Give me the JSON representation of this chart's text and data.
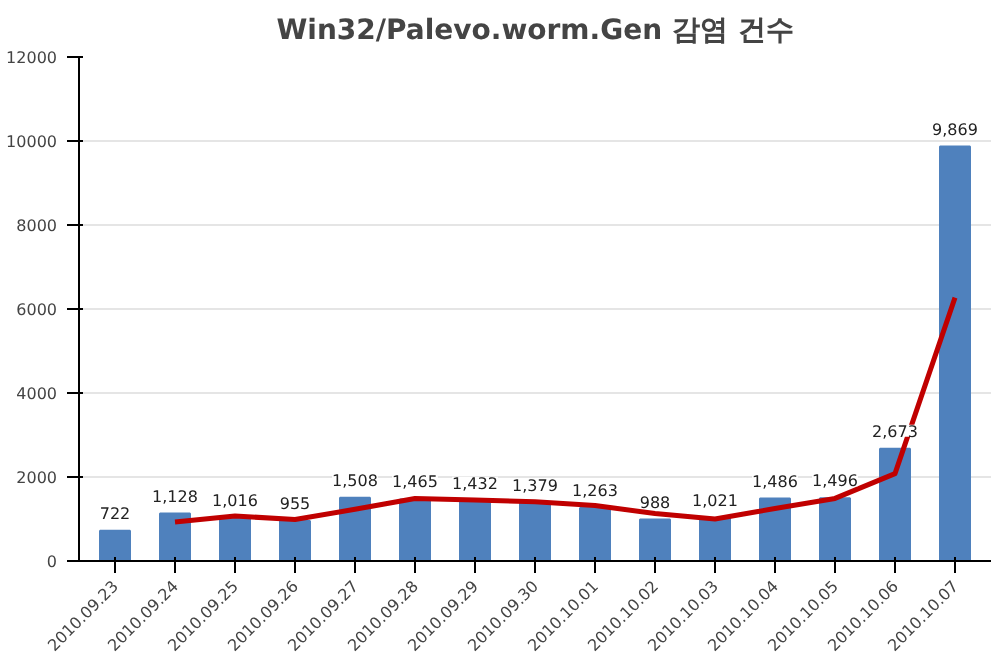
{
  "chart_data": {
    "type": "bar",
    "title": "Win32/Palevo.worm.Gen 감염 건수",
    "categories": [
      "2010.09.23",
      "2010.09.24",
      "2010.09.25",
      "2010.09.26",
      "2010.09.27",
      "2010.09.28",
      "2010.09.29",
      "2010.09.30",
      "2010.10.01",
      "2010.10.02",
      "2010.10.03",
      "2010.10.04",
      "2010.10.05",
      "2010.10.06",
      "2010.10.07"
    ],
    "series": [
      {
        "color": "#4f81bd",
        "values": [
          722,
          1128,
          1016,
          955,
          1508,
          1465,
          1432,
          1379,
          1263,
          988,
          1021,
          1486,
          1496,
          2673,
          9869
        ],
        "value_labels": [
          "722",
          "1,128",
          "1,016",
          "955",
          "1,508",
          "1,465",
          "1,432",
          "1,379",
          "1,263",
          "988",
          "1,021",
          "1,486",
          "1,496",
          "2,673",
          "9,869"
        ]
      },
      {
        "type": "line",
        "color": "#c00000",
        "values": [
          null,
          930,
          1070,
          990,
          1230,
          1490,
          1450,
          1410,
          1320,
          1130,
          1000,
          1250,
          1490,
          2080,
          6270
        ]
      }
    ],
    "ylim": [
      0,
      12000
    ],
    "yticks": [
      0,
      2000,
      4000,
      6000,
      8000,
      10000,
      12000
    ],
    "grid": "y"
  }
}
